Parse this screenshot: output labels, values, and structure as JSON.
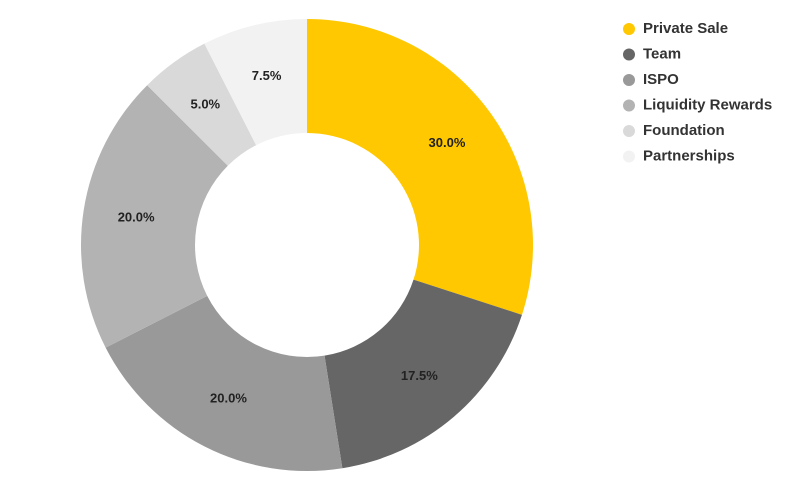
{
  "chart_data": {
    "type": "donut",
    "categories": [
      "Private Sale",
      "Team",
      "ISPO",
      "Liquidity Rewards",
      "Foundation",
      "Partnerships"
    ],
    "values": [
      30,
      17.5,
      20,
      20,
      5,
      7.5
    ],
    "value_labels": [
      "30.0%",
      "17.5%",
      "20.0%",
      "20.0%",
      "5.0%",
      "7.5%"
    ],
    "colors": [
      "#ffc800",
      "#666666",
      "#999999",
      "#b3b3b3",
      "#d9d9d9",
      "#f2f2f2"
    ],
    "legend": "top-right"
  }
}
